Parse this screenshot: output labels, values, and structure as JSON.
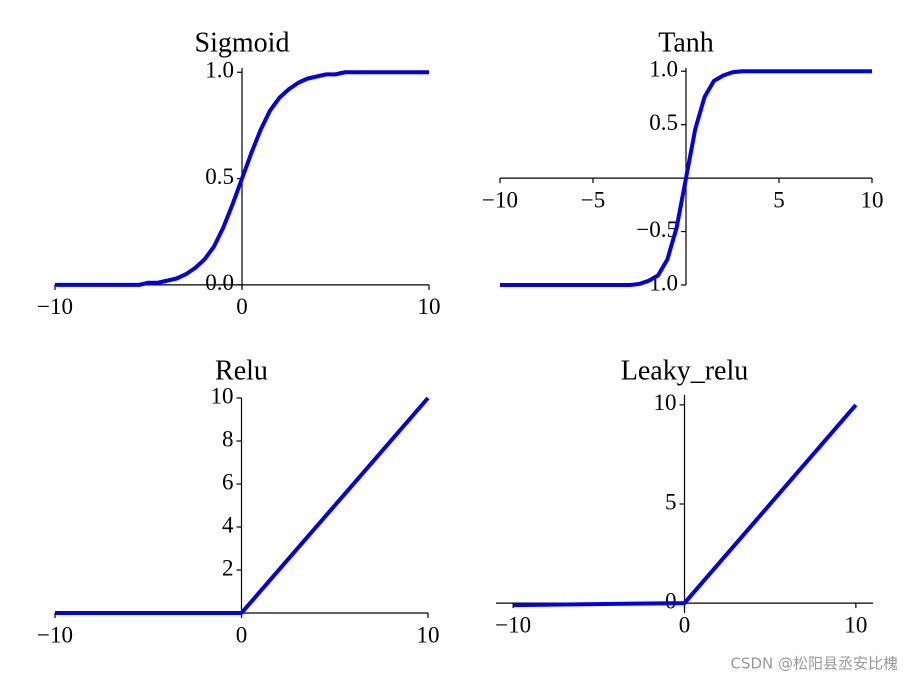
{
  "chart_data": [
    {
      "type": "line",
      "title": "Sigmoid",
      "x": [
        -10,
        -9.5,
        -9,
        -8.5,
        -8,
        -7.5,
        -7,
        -6.5,
        -6,
        -5.5,
        -5,
        -4.5,
        -4,
        -3.5,
        -3,
        -2.5,
        -2,
        -1.5,
        -1,
        -0.5,
        0,
        0.5,
        1,
        1.5,
        2,
        2.5,
        3,
        3.5,
        4,
        4.5,
        5,
        5.5,
        6,
        6.5,
        7,
        7.5,
        8,
        8.5,
        9,
        9.5,
        10
      ],
      "series": [
        {
          "color": "#0000ee",
          "values": [
            0,
            0,
            0,
            0,
            0,
            0,
            0,
            0,
            0,
            0,
            0.01,
            0.01,
            0.02,
            0.03,
            0.05,
            0.08,
            0.12,
            0.18,
            0.27,
            0.38,
            0.5,
            0.62,
            0.73,
            0.82,
            0.88,
            0.92,
            0.95,
            0.97,
            0.98,
            0.99,
            0.99,
            1,
            1,
            1,
            1,
            1,
            1,
            1,
            1,
            1,
            1
          ]
        }
      ],
      "xlim": [
        -10,
        10
      ],
      "ylim": [
        -0.01,
        1.02
      ],
      "xticks": [
        {
          "value": -10,
          "label": "−10"
        },
        0,
        10
      ],
      "yticks": [
        {
          "value": 0,
          "label": "0.0"
        },
        {
          "value": 0.5,
          "label": "0.5"
        },
        {
          "value": 1,
          "label": "1.0"
        }
      ]
    },
    {
      "type": "line",
      "title": "Tanh",
      "x": [
        -10,
        -9.5,
        -9,
        -8.5,
        -8,
        -7.5,
        -7,
        -6.5,
        -6,
        -5.5,
        -5,
        -4.5,
        -4,
        -3.5,
        -3,
        -2.5,
        -2,
        -1.5,
        -1,
        -0.5,
        0,
        0.5,
        1,
        1.5,
        2,
        2.5,
        3,
        3.5,
        4,
        4.5,
        5,
        5.5,
        6,
        6.5,
        7,
        7.5,
        8,
        8.5,
        9,
        9.5,
        10
      ],
      "series": [
        {
          "color": "#0000ee",
          "values": [
            -1,
            -1,
            -1,
            -1,
            -1,
            -1,
            -1,
            -1,
            -1,
            -1,
            -1,
            -1,
            -1,
            -1,
            -1,
            -0.99,
            -0.96,
            -0.91,
            -0.76,
            -0.46,
            0,
            0.46,
            0.76,
            0.91,
            0.96,
            0.99,
            1,
            1,
            1,
            1,
            1,
            1,
            1,
            1,
            1,
            1,
            1,
            1,
            1,
            1,
            1
          ]
        }
      ],
      "xlim": [
        -10,
        10
      ],
      "ylim": [
        -1,
        1.03
      ],
      "xticks": [
        {
          "value": -10,
          "label": "−10"
        },
        {
          "value": -5,
          "label": "−5"
        },
        5,
        10
      ],
      "yticks": [
        {
          "value": -1,
          "label": "−1.0"
        },
        {
          "value": -0.5,
          "label": "−0.5"
        },
        0.5,
        {
          "value": 1,
          "label": "1.0"
        }
      ]
    },
    {
      "type": "line",
      "title": "Relu",
      "x": [
        -10,
        0,
        10
      ],
      "series": [
        {
          "color": "#0000ee",
          "values": [
            0,
            0,
            10
          ]
        }
      ],
      "xlim": [
        -10,
        10
      ],
      "ylim": [
        0,
        10
      ],
      "xticks": [
        {
          "value": -10,
          "label": "−10"
        },
        0,
        10
      ],
      "yticks": [
        2,
        4,
        6,
        8,
        10
      ]
    },
    {
      "type": "line",
      "title": "Leaky_relu",
      "x": [
        -10,
        0,
        10
      ],
      "series": [
        {
          "color": "#0000ee",
          "values": [
            -0.1,
            0,
            10
          ]
        }
      ],
      "xlim": [
        -11,
        11
      ],
      "ylim": [
        -0.5,
        10.5
      ],
      "xticks": [
        {
          "value": -10,
          "label": "−10"
        },
        0,
        10
      ],
      "yticks": [
        0,
        5,
        10
      ]
    }
  ],
  "watermark": "CSDN @松阳县丞安比槐"
}
